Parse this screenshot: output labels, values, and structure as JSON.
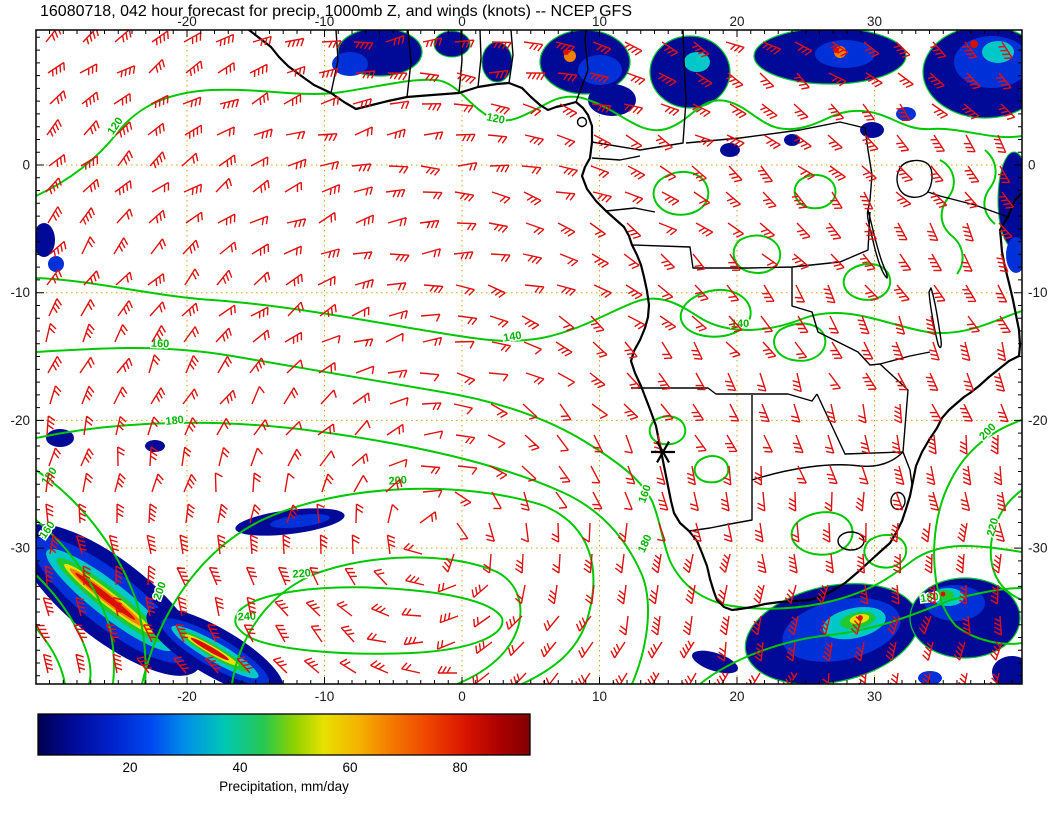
{
  "title": "16080718, 042 hour forecast for precip, 1000mb Z, and winds (knots) -- NCEP GFS",
  "axes": {
    "top": [
      "-20",
      "-10",
      "0",
      "10",
      "20",
      "30"
    ],
    "bottom": [
      "-20",
      "-10",
      "0",
      "10",
      "20",
      "30"
    ],
    "left": [
      "0",
      "-10",
      "-20",
      "-30"
    ],
    "right": [
      "0",
      "-10",
      "-20",
      "-30"
    ]
  },
  "contour_labels": {
    "h120": "120",
    "h140": "140",
    "h160": "160",
    "h180": "180",
    "h200": "200",
    "h220": "220",
    "h240": "240"
  },
  "colorbar": {
    "ticks": [
      "20",
      "40",
      "60",
      "80"
    ],
    "caption": "Precipitation, mm/day"
  },
  "chart_data": {
    "type": "heatmap",
    "title": "16080718, 042 hour forecast for precip, 1000mb Z, and winds (knots) -- NCEP GFS",
    "model": "NCEP GFS",
    "init_time": "16080718",
    "forecast_hour": "042",
    "x_ticks_longitude": [
      -20,
      -10,
      0,
      10,
      20,
      30
    ],
    "y_ticks_latitude": [
      0,
      -10,
      -20,
      -30
    ],
    "height_contour_levels_m": [
      120,
      140,
      160,
      180,
      200,
      220,
      240
    ],
    "colorbar": {
      "label": "Precipitation, mm/day",
      "ticks": [
        20,
        40,
        60,
        80
      ]
    },
    "overlays": [
      "precipitation shading (mm/day)",
      "1000mb geopotential height contours (green)",
      "wind barbs (knots, red)"
    ],
    "colors": {
      "wind": "#e01010",
      "contour": "#00c800",
      "grid": "#d8a020",
      "coast": "#000000",
      "precip_low": "#000a96",
      "precip_high": "#d81000"
    }
  }
}
